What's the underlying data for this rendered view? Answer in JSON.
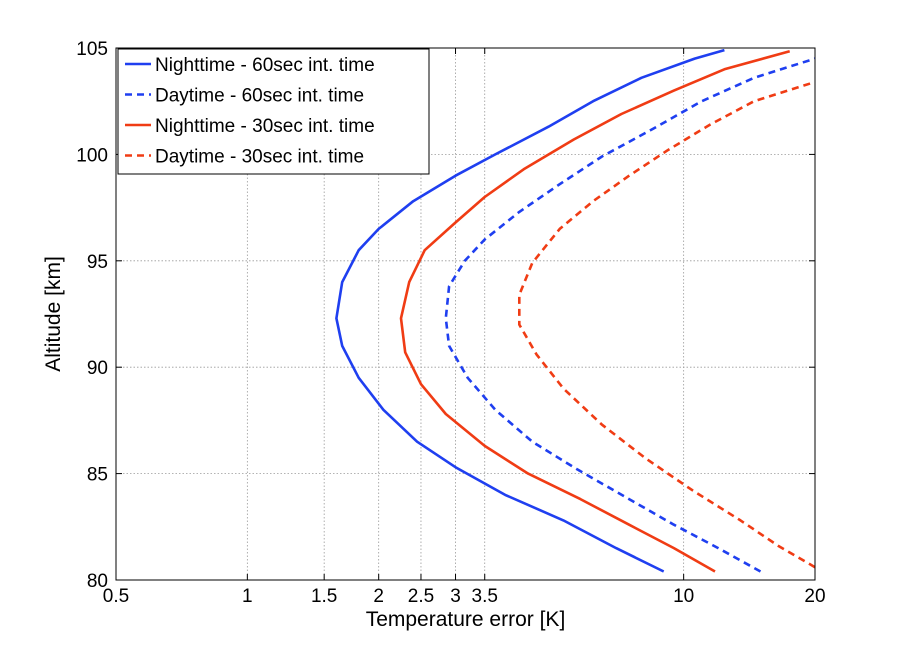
{
  "chart_data": {
    "type": "line",
    "xlabel": "Temperature error [K]",
    "ylabel": "Altitude [km]",
    "x_scale": "log",
    "xlim": [
      0.5,
      20
    ],
    "ylim": [
      80,
      105
    ],
    "x_ticks": [
      0.5,
      1,
      1.5,
      2,
      2.5,
      3,
      3.5,
      10,
      20
    ],
    "x_tick_labels": [
      "0.5",
      "1",
      "1.5",
      "2",
      "2.5",
      "3",
      "3.5",
      "10",
      "20"
    ],
    "y_ticks": [
      80,
      85,
      90,
      95,
      100,
      105
    ],
    "y_tick_labels": [
      "80",
      "85",
      "90",
      "95",
      "100",
      "105"
    ],
    "grid": true,
    "legend_position": "top-left",
    "series": [
      {
        "name": "Nighttime - 60sec int. time",
        "color": "#1f3ff0",
        "style": "solid",
        "points": [
          [
            9.0,
            80.4
          ],
          [
            7.0,
            81.5
          ],
          [
            5.3,
            82.8
          ],
          [
            3.9,
            84.0
          ],
          [
            3.0,
            85.3
          ],
          [
            2.45,
            86.5
          ],
          [
            2.05,
            88.0
          ],
          [
            1.8,
            89.5
          ],
          [
            1.65,
            91.0
          ],
          [
            1.6,
            92.3
          ],
          [
            1.65,
            94.0
          ],
          [
            1.8,
            95.5
          ],
          [
            2.0,
            96.5
          ],
          [
            2.4,
            97.8
          ],
          [
            3.0,
            99.0
          ],
          [
            3.7,
            100.0
          ],
          [
            4.9,
            101.3
          ],
          [
            6.2,
            102.5
          ],
          [
            8.0,
            103.6
          ],
          [
            10.6,
            104.5
          ],
          [
            12.4,
            104.9
          ]
        ]
      },
      {
        "name": "Daytime - 60sec int. time",
        "color": "#1f3ff0",
        "style": "dashed",
        "points": [
          [
            15.0,
            80.4
          ],
          [
            12.0,
            81.5
          ],
          [
            9.5,
            82.6
          ],
          [
            7.5,
            83.8
          ],
          [
            5.7,
            85.2
          ],
          [
            4.5,
            86.5
          ],
          [
            3.7,
            88.0
          ],
          [
            3.2,
            89.5
          ],
          [
            2.9,
            91.0
          ],
          [
            2.85,
            92.3
          ],
          [
            2.9,
            93.8
          ],
          [
            3.15,
            95.0
          ],
          [
            3.5,
            96.0
          ],
          [
            4.2,
            97.3
          ],
          [
            5.2,
            98.6
          ],
          [
            6.5,
            99.9
          ],
          [
            8.5,
            101.2
          ],
          [
            11.0,
            102.5
          ],
          [
            14.5,
            103.6
          ],
          [
            20.0,
            104.5
          ]
        ]
      },
      {
        "name": "Nighttime - 30sec int. time",
        "color": "#f03c14",
        "style": "solid",
        "points": [
          [
            11.8,
            80.4
          ],
          [
            9.5,
            81.5
          ],
          [
            7.5,
            82.6
          ],
          [
            5.8,
            83.8
          ],
          [
            4.4,
            85.0
          ],
          [
            3.5,
            86.3
          ],
          [
            2.85,
            87.8
          ],
          [
            2.5,
            89.2
          ],
          [
            2.3,
            90.7
          ],
          [
            2.25,
            92.3
          ],
          [
            2.35,
            94.0
          ],
          [
            2.55,
            95.5
          ],
          [
            3.0,
            96.8
          ],
          [
            3.5,
            98.0
          ],
          [
            4.3,
            99.3
          ],
          [
            5.6,
            100.7
          ],
          [
            7.2,
            101.9
          ],
          [
            9.5,
            103.0
          ],
          [
            12.4,
            104.0
          ],
          [
            17.5,
            104.85
          ]
        ]
      },
      {
        "name": "Daytime - 30sec int. time",
        "color": "#f03c14",
        "style": "dashed",
        "points": [
          [
            20.0,
            80.6
          ],
          [
            16.5,
            81.6
          ],
          [
            13.5,
            82.8
          ],
          [
            10.5,
            84.2
          ],
          [
            8.2,
            85.7
          ],
          [
            6.5,
            87.3
          ],
          [
            5.3,
            89.0
          ],
          [
            4.6,
            90.6
          ],
          [
            4.2,
            92.0
          ],
          [
            4.2,
            93.4
          ],
          [
            4.5,
            94.9
          ],
          [
            5.2,
            96.5
          ],
          [
            6.2,
            97.8
          ],
          [
            7.5,
            99.0
          ],
          [
            9.2,
            100.2
          ],
          [
            11.5,
            101.4
          ],
          [
            14.5,
            102.5
          ],
          [
            20.0,
            103.4
          ]
        ]
      }
    ]
  }
}
